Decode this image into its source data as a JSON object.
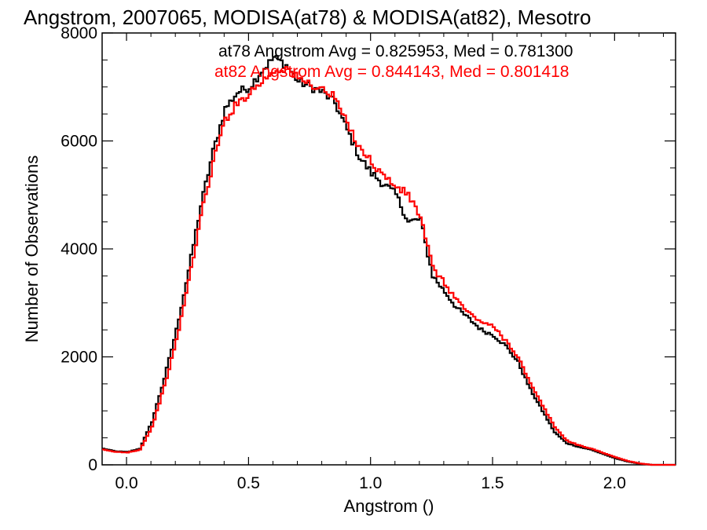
{
  "chart_data": {
    "type": "line",
    "style": "step-histogram",
    "title": "Angstrom, 2007065, MODISA(at78) & MODISA(at82), Mesotro",
    "xlabel": "Angstrom ()",
    "ylabel": "Number of Observations",
    "xlim": [
      -0.1,
      2.25
    ],
    "ylim": [
      0,
      8000
    ],
    "x_ticks": [
      0.0,
      0.5,
      1.0,
      1.5,
      2.0
    ],
    "x_tick_labels": [
      "0.0",
      "0.5",
      "1.0",
      "1.5",
      "2.0"
    ],
    "y_ticks": [
      0,
      2000,
      4000,
      6000,
      8000
    ],
    "y_tick_labels": [
      "0",
      "2000",
      "4000",
      "6000",
      "8000"
    ],
    "grid": false,
    "legend": "top-right",
    "annotations": [
      {
        "text": "at78 Angstrom Avg = 0.825953, Med = 0.781300",
        "color": "#000000"
      },
      {
        "text": "at82 Angstrom Avg = 0.844143, Med = 0.801418",
        "color": "#ff0000"
      }
    ],
    "series": [
      {
        "name": "at78",
        "color": "#000000",
        "x": [
          -0.1,
          -0.05,
          0.0,
          0.05,
          0.1,
          0.15,
          0.2,
          0.25,
          0.3,
          0.35,
          0.4,
          0.45,
          0.5,
          0.55,
          0.6,
          0.65,
          0.7,
          0.75,
          0.8,
          0.85,
          0.9,
          0.95,
          1.0,
          1.05,
          1.1,
          1.15,
          1.2,
          1.22,
          1.25,
          1.3,
          1.35,
          1.4,
          1.45,
          1.5,
          1.55,
          1.6,
          1.65,
          1.7,
          1.75,
          1.8,
          1.85,
          1.9,
          1.95,
          2.0,
          2.05,
          2.1,
          2.15
        ],
        "values": [
          300,
          250,
          240,
          300,
          800,
          1600,
          2500,
          3600,
          4800,
          5800,
          6600,
          6900,
          7000,
          7300,
          7550,
          7400,
          7100,
          7000,
          6900,
          6700,
          6200,
          5700,
          5400,
          5200,
          5000,
          4500,
          4550,
          4100,
          3500,
          3200,
          2900,
          2700,
          2500,
          2400,
          2200,
          1900,
          1400,
          1000,
          600,
          400,
          330,
          280,
          200,
          120,
          60,
          20,
          0
        ]
      },
      {
        "name": "at82",
        "color": "#ff0000",
        "x": [
          -0.1,
          -0.05,
          0.0,
          0.05,
          0.1,
          0.15,
          0.2,
          0.25,
          0.3,
          0.35,
          0.4,
          0.45,
          0.5,
          0.55,
          0.6,
          0.65,
          0.7,
          0.75,
          0.8,
          0.85,
          0.9,
          0.95,
          1.0,
          1.05,
          1.1,
          1.15,
          1.2,
          1.22,
          1.25,
          1.3,
          1.35,
          1.4,
          1.45,
          1.5,
          1.55,
          1.6,
          1.65,
          1.7,
          1.75,
          1.8,
          1.85,
          1.9,
          1.95,
          2.0,
          2.05,
          2.1,
          2.15
        ],
        "values": [
          280,
          240,
          230,
          280,
          700,
          1450,
          2300,
          3400,
          4600,
          5600,
          6400,
          6700,
          6900,
          7100,
          7300,
          7350,
          7150,
          7050,
          6950,
          6800,
          6300,
          5900,
          5600,
          5350,
          5150,
          5000,
          4600,
          4200,
          3650,
          3350,
          3050,
          2800,
          2650,
          2550,
          2300,
          2000,
          1500,
          1100,
          700,
          450,
          360,
          300,
          220,
          140,
          70,
          25,
          0
        ]
      }
    ]
  }
}
